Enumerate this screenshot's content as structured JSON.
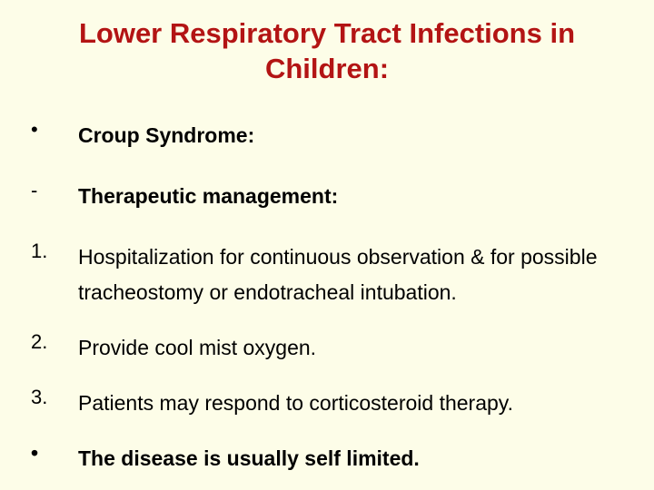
{
  "title": "Lower Respiratory Tract Infections in Children:",
  "items": [
    {
      "marker": "•",
      "text": "Croup Syndrome:",
      "bold": true
    },
    {
      "marker": "-",
      "text": "Therapeutic management:",
      "bold": true
    },
    {
      "marker": "1.",
      "text": "Hospitalization for continuous observation & for possible tracheostomy or endotracheal intubation.",
      "bold": false
    },
    {
      "marker": "2.",
      "text": "Provide cool mist oxygen.",
      "bold": false
    },
    {
      "marker": "3.",
      "text": "Patients may respond to corticosteroid therapy.",
      "bold": false
    },
    {
      "marker": "•",
      "text": "The disease is usually self limited.",
      "bold": true
    }
  ],
  "colors": {
    "background": "#fdfde8",
    "title": "#b31414",
    "body": "#000000"
  }
}
